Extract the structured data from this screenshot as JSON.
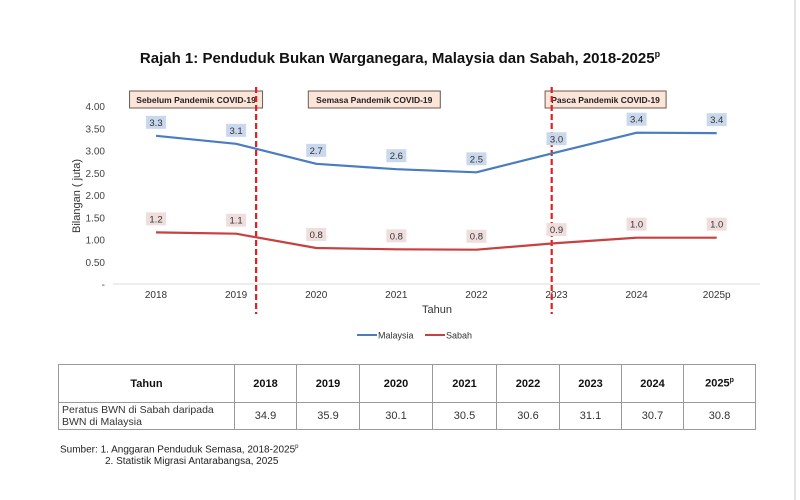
{
  "chart_data": {
    "type": "line",
    "title": "Rajah 1: Penduduk Bukan Warganegara, Malaysia dan Sabah, 2018-2025",
    "title_superscript": "p",
    "xlabel": "Tahun",
    "ylabel": "Bilangan ( juta)",
    "categories": [
      "2018",
      "2019",
      "2020",
      "2021",
      "2022",
      "2023",
      "2024",
      "2025p"
    ],
    "yticks": [
      "-",
      "0.50",
      "1.00",
      "1.50",
      "2.00",
      "2.50",
      "3.00",
      "3.50",
      "4.00"
    ],
    "ylim": [
      0,
      4.0
    ],
    "grid": false,
    "legend_position": "bottom",
    "series": [
      {
        "name": "Malaysia",
        "color": "#4a7cc0",
        "label_bg": "#c9d8ec",
        "values": [
          3.33,
          3.15,
          2.7,
          2.58,
          2.51,
          2.96,
          3.4,
          3.39
        ],
        "data_labels": [
          "3.3",
          "3.1",
          "2.7",
          "2.6",
          "2.5",
          "3.0",
          "3.4",
          "3.4"
        ]
      },
      {
        "name": "Sabah",
        "color": "#c84040",
        "label_bg": "#f0dede",
        "values": [
          1.16,
          1.13,
          0.81,
          0.78,
          0.77,
          0.92,
          1.04,
          1.04
        ],
        "data_labels": [
          "1.2",
          "1.1",
          "0.8",
          "0.8",
          "0.8",
          "0.9",
          "1.0",
          "1.0"
        ]
      }
    ],
    "period_dividers": [
      {
        "between": [
          "2019",
          "2020"
        ],
        "color": "#e02020"
      },
      {
        "between": [
          "2022",
          "2023"
        ],
        "color": "#e02020"
      }
    ],
    "period_labels": [
      {
        "label": "Sebelum Pandemik COVID-19",
        "from": "2018",
        "to": "2019"
      },
      {
        "label": "Semasa Pandemik COVID-19",
        "from": "2020",
        "to": "2022"
      },
      {
        "label": "Pasca Pandemik COVID-19",
        "from": "2023",
        "to": "2025p"
      }
    ],
    "period_box_fill": "#fbe4d8",
    "period_box_border": "#6b5a52"
  },
  "table": {
    "header_label": "Tahun",
    "years": [
      "2018",
      "2019",
      "2020",
      "2021",
      "2022",
      "2023",
      "2024",
      "2025"
    ],
    "last_year_superscript": "p",
    "row_label_line1": "Peratus BWN di Sabah daripada",
    "row_label_line2": "BWN di Malaysia",
    "values": [
      "34.9",
      "35.9",
      "30.1",
      "30.5",
      "30.6",
      "31.1",
      "30.7",
      "30.8"
    ]
  },
  "source": {
    "line1": "Sumber: 1. Anggaran Penduduk Semasa, 2018-2025",
    "line1_superscript": "p",
    "line2": "2. Statistik Migrasi Antarabangsa, 2025"
  }
}
